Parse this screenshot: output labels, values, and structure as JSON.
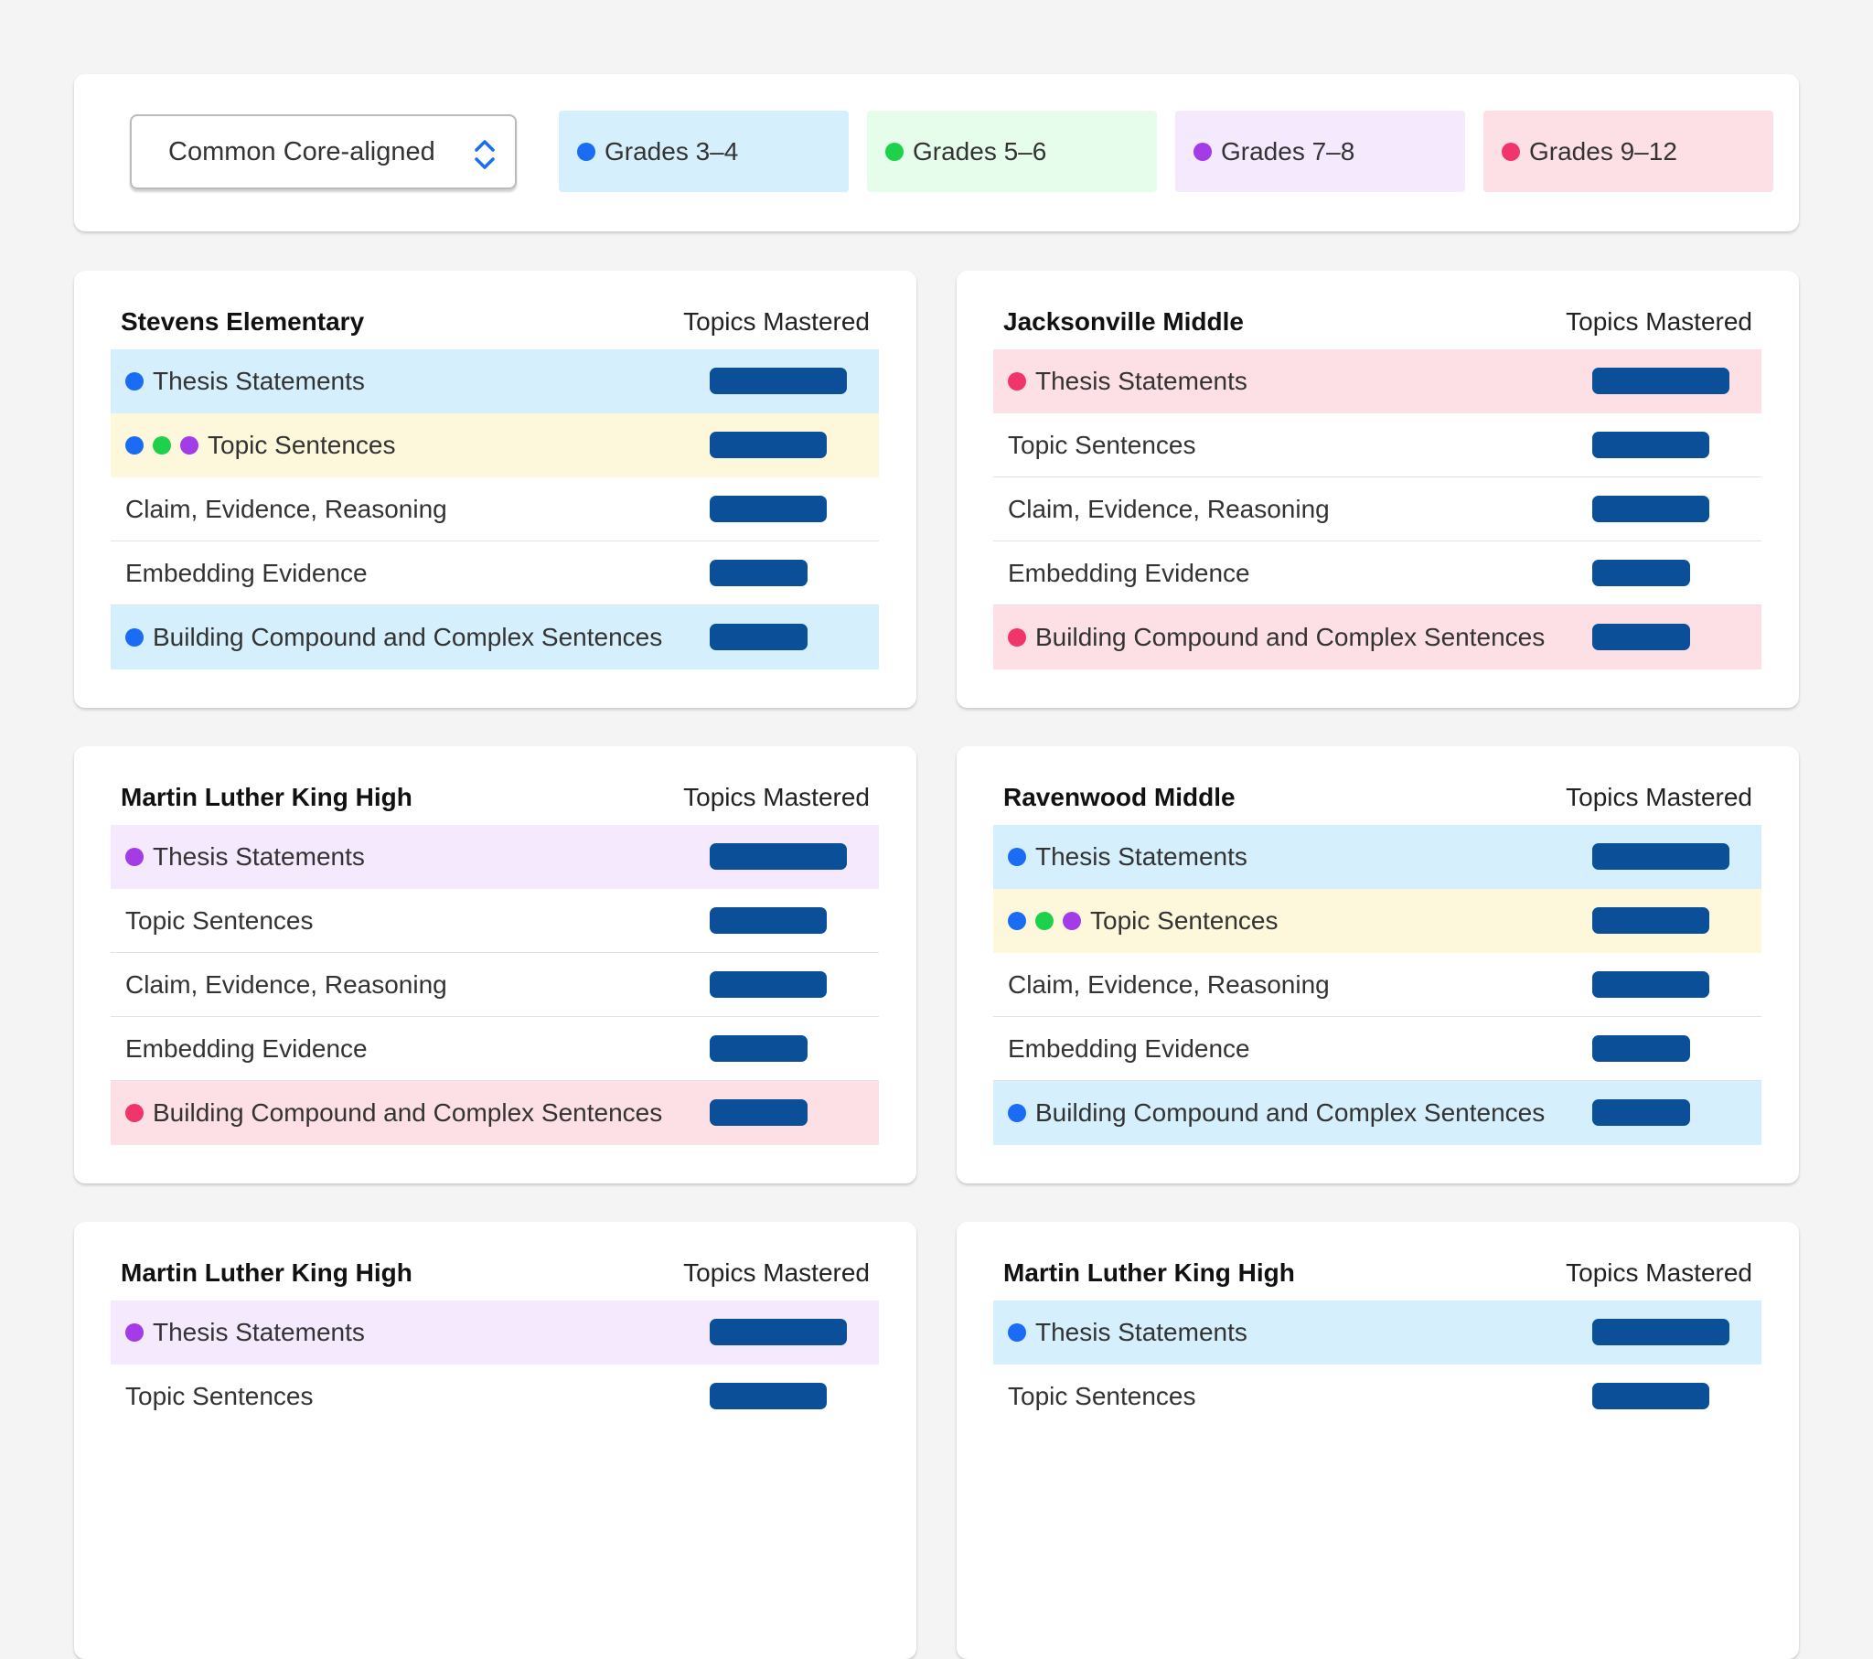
{
  "filter": {
    "selected": "Common Core-aligned"
  },
  "legend": [
    {
      "label": "Grades 3–4",
      "color": "#1a6cf5",
      "background": "#d5effc"
    },
    {
      "label": "Grades 5–6",
      "color": "#1ed14b",
      "background": "#e6fdec"
    },
    {
      "label": "Grades 7–8",
      "color": "#a33be6",
      "background": "#f5e9fd"
    },
    {
      "label": "Grades 9–12",
      "color": "#f0356b",
      "background": "#fde0e6"
    }
  ],
  "multi_grade_background": "#fdf8dc",
  "bar_color": "#0a4f97",
  "schools": [
    {
      "name": "Stevens Elementary",
      "column_header": "Topics Mastered",
      "topics": [
        {
          "label": "Thesis Statements",
          "grades": [
            0
          ],
          "mastered": 7
        },
        {
          "label": "Topic Sentences",
          "grades": [
            0,
            1,
            2
          ],
          "mastered": 6
        },
        {
          "label": "Claim, Evidence, Reasoning",
          "grades": [],
          "mastered": 6
        },
        {
          "label": "Embedding Evidence",
          "grades": [],
          "mastered": 5
        },
        {
          "label": "Building Compound and Complex Sentences",
          "grades": [
            0
          ],
          "mastered": 5
        }
      ]
    },
    {
      "name": "Jacksonville Middle",
      "column_header": "Topics Mastered",
      "topics": [
        {
          "label": "Thesis Statements",
          "grades": [
            3
          ],
          "mastered": 7
        },
        {
          "label": "Topic Sentences",
          "grades": [],
          "mastered": 6
        },
        {
          "label": "Claim, Evidence, Reasoning",
          "grades": [],
          "mastered": 6
        },
        {
          "label": "Embedding Evidence",
          "grades": [],
          "mastered": 5
        },
        {
          "label": "Building Compound and Complex Sentences",
          "grades": [
            3
          ],
          "mastered": 5
        }
      ]
    },
    {
      "name": "Martin Luther King High",
      "column_header": "Topics Mastered",
      "topics": [
        {
          "label": "Thesis Statements",
          "grades": [
            2
          ],
          "mastered": 7
        },
        {
          "label": "Topic Sentences",
          "grades": [],
          "mastered": 6
        },
        {
          "label": "Claim, Evidence, Reasoning",
          "grades": [],
          "mastered": 6
        },
        {
          "label": "Embedding Evidence",
          "grades": [],
          "mastered": 5
        },
        {
          "label": "Building Compound and Complex Sentences",
          "grades": [
            3
          ],
          "mastered": 5
        }
      ]
    },
    {
      "name": "Ravenwood Middle",
      "column_header": "Topics Mastered",
      "topics": [
        {
          "label": "Thesis Statements",
          "grades": [
            0
          ],
          "mastered": 7
        },
        {
          "label": "Topic Sentences",
          "grades": [
            0,
            1,
            2
          ],
          "mastered": 6
        },
        {
          "label": "Claim, Evidence, Reasoning",
          "grades": [],
          "mastered": 6
        },
        {
          "label": "Embedding Evidence",
          "grades": [],
          "mastered": 5
        },
        {
          "label": "Building Compound and Complex Sentences",
          "grades": [
            0
          ],
          "mastered": 5
        }
      ]
    },
    {
      "name": "Martin Luther King High",
      "column_header": "Topics Mastered",
      "topics": [
        {
          "label": "Thesis Statements",
          "grades": [
            2
          ],
          "mastered": 7
        },
        {
          "label": "Topic Sentences",
          "grades": [],
          "mastered": 6
        }
      ]
    },
    {
      "name": "Martin Luther King High",
      "column_header": "Topics Mastered",
      "topics": [
        {
          "label": "Thesis Statements",
          "grades": [
            0
          ],
          "mastered": 7
        },
        {
          "label": "Topic Sentences",
          "grades": [],
          "mastered": 6
        }
      ]
    }
  ]
}
